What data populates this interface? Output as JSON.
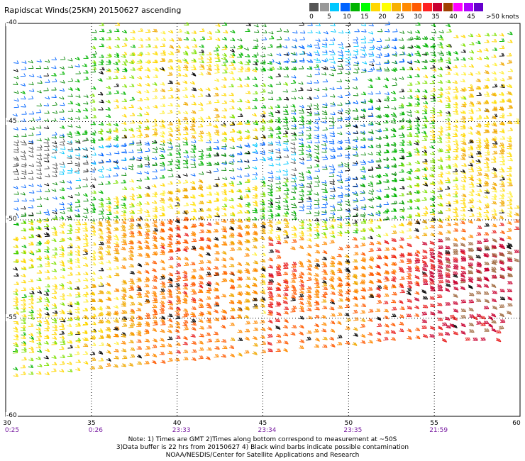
{
  "title": "Rapidscat Winds(25KM) 20150627 ascending",
  "legend": {
    "unit_label": ">50 knots",
    "labels": [
      "0",
      "5",
      "10",
      "15",
      "20",
      "25",
      "30",
      "35",
      "40",
      "45"
    ],
    "colors": [
      "#555555",
      "#999999",
      "#00c8ff",
      "#0064ff",
      "#00b400",
      "#00ff00",
      "#ffd700",
      "#ffff00",
      "#f7b000",
      "#ff8a00",
      "#ff5a00",
      "#ff2020",
      "#c80030",
      "#a04000",
      "#ff00ff",
      "#b000ff",
      "#6600cc"
    ]
  },
  "map": {
    "lon_range": [
      30,
      60
    ],
    "lat_range": [
      -40,
      -60
    ],
    "lon_ticks": [
      "30",
      "35",
      "40",
      "45",
      "50",
      "55",
      "60"
    ],
    "lat_ticks": [
      "-40",
      "-45",
      "-50",
      "-55",
      "-60"
    ],
    "times": [
      "0:25",
      "0:26",
      "23:33",
      "23:34",
      "23:35",
      "21:59"
    ]
  },
  "notes": [
    "Note: 1) Times are GMT 2)Times along bottom correspond to measurement at ~50S",
    "3)Data buffer is 22 hrs from 20150627 4) Black wind barbs indicate possible contamination",
    "NOAA/NESDIS/Center for Satellite Applications and Research"
  ]
}
